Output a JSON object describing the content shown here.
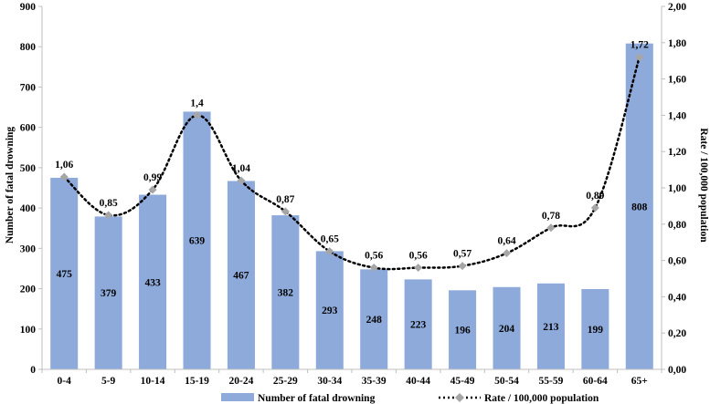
{
  "chart_data": {
    "type": "bar",
    "categories": [
      "0-4",
      "5-9",
      "10-14",
      "15-19",
      "20-24",
      "25-29",
      "30-34",
      "35-39",
      "40-44",
      "45-49",
      "50-54",
      "55-59",
      "60-64",
      "65+"
    ],
    "series": [
      {
        "name": "Number of fatal drowning",
        "type": "bar",
        "axis": "left",
        "color": "#8eaadb",
        "values": [
          475,
          379,
          433,
          639,
          467,
          382,
          293,
          248,
          223,
          196,
          204,
          213,
          199,
          808
        ],
        "labels": [
          "475",
          "379",
          "433",
          "639",
          "467",
          "382",
          "293",
          "248",
          "223",
          "196",
          "204",
          "213",
          "199",
          "808"
        ]
      },
      {
        "name": "Rate / 100,000 population",
        "type": "line",
        "axis": "right",
        "line_style": "dotted",
        "line_color": "#000000",
        "marker": "diamond",
        "marker_color": "#a6a6a6",
        "values": [
          1.06,
          0.85,
          0.99,
          1.4,
          1.04,
          0.87,
          0.65,
          0.56,
          0.56,
          0.57,
          0.64,
          0.78,
          0.89,
          1.72
        ],
        "labels": [
          "1,06",
          "0,85",
          "0,99",
          "1,4",
          "1,04",
          "0,87",
          "0,65",
          "0,56",
          "0,56",
          "0,57",
          "0,64",
          "0,78",
          "0,89",
          "1,72"
        ]
      }
    ],
    "ylabel": "Number of fatal drowning",
    "ylabel_right": "Rate / 100,000 population",
    "ylim": [
      0,
      900
    ],
    "ylim_right": [
      0,
      2
    ],
    "yticks": [
      "0",
      "100",
      "200",
      "300",
      "400",
      "500",
      "600",
      "700",
      "800",
      "900"
    ],
    "yticks_right": [
      "0,00",
      "0,20",
      "0,40",
      "0,60",
      "0,80",
      "1,00",
      "1,20",
      "1,40",
      "1,60",
      "1,80",
      "2,00"
    ],
    "grid": false,
    "legend_position": "bottom"
  }
}
